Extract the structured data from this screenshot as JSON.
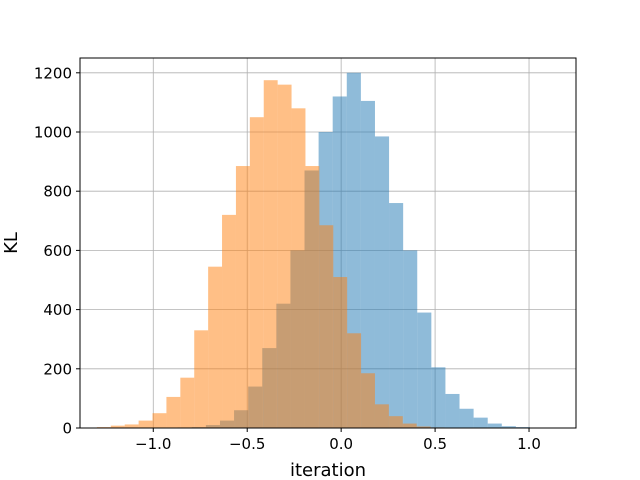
{
  "chart_data": {
    "type": "histogram",
    "title": "",
    "xlabel": "iteration",
    "ylabel": "KL",
    "xlim": [
      -1.39,
      1.25
    ],
    "ylim": [
      0,
      1250
    ],
    "grid": true,
    "xticks": [
      -1.0,
      -0.5,
      0.0,
      0.5,
      1.0
    ],
    "xtick_labels": [
      "−1.0",
      "−0.5",
      "0.0",
      "0.5",
      "1.0"
    ],
    "yticks": [
      0,
      200,
      400,
      600,
      800,
      1000,
      1200
    ],
    "ytick_labels": [
      "0",
      "200",
      "400",
      "600",
      "800",
      "1000",
      "1200"
    ],
    "series": [
      {
        "color": "#1f77b4",
        "alpha": 0.5,
        "bin_edges": [
          -0.87,
          -0.795,
          -0.72,
          -0.645,
          -0.57,
          -0.495,
          -0.42,
          -0.345,
          -0.27,
          -0.195,
          -0.12,
          -0.045,
          0.03,
          0.105,
          0.18,
          0.255,
          0.33,
          0.405,
          0.48,
          0.555,
          0.63,
          0.705,
          0.78,
          0.855,
          0.93,
          1.005,
          1.08,
          1.155
        ],
        "counts": [
          2,
          3,
          10,
          25,
          60,
          140,
          270,
          420,
          600,
          870,
          1000,
          1120,
          1200,
          1105,
          985,
          760,
          600,
          390,
          205,
          115,
          65,
          35,
          15,
          6,
          3,
          0,
          1
        ]
      },
      {
        "color": "#ff7f0e",
        "alpha": 0.5,
        "bin_edges": [
          -1.3,
          -1.226,
          -1.152,
          -1.078,
          -1.004,
          -0.93,
          -0.856,
          -0.782,
          -0.708,
          -0.634,
          -0.56,
          -0.486,
          -0.412,
          -0.338,
          -0.264,
          -0.19,
          -0.116,
          -0.042,
          0.032,
          0.106,
          0.18,
          0.254,
          0.328,
          0.402,
          0.476,
          0.55
        ],
        "counts": [
          3,
          8,
          12,
          25,
          50,
          105,
          170,
          330,
          545,
          720,
          885,
          1050,
          1175,
          1160,
          1080,
          885,
          685,
          510,
          320,
          185,
          80,
          40,
          15,
          5,
          2
        ]
      }
    ]
  }
}
